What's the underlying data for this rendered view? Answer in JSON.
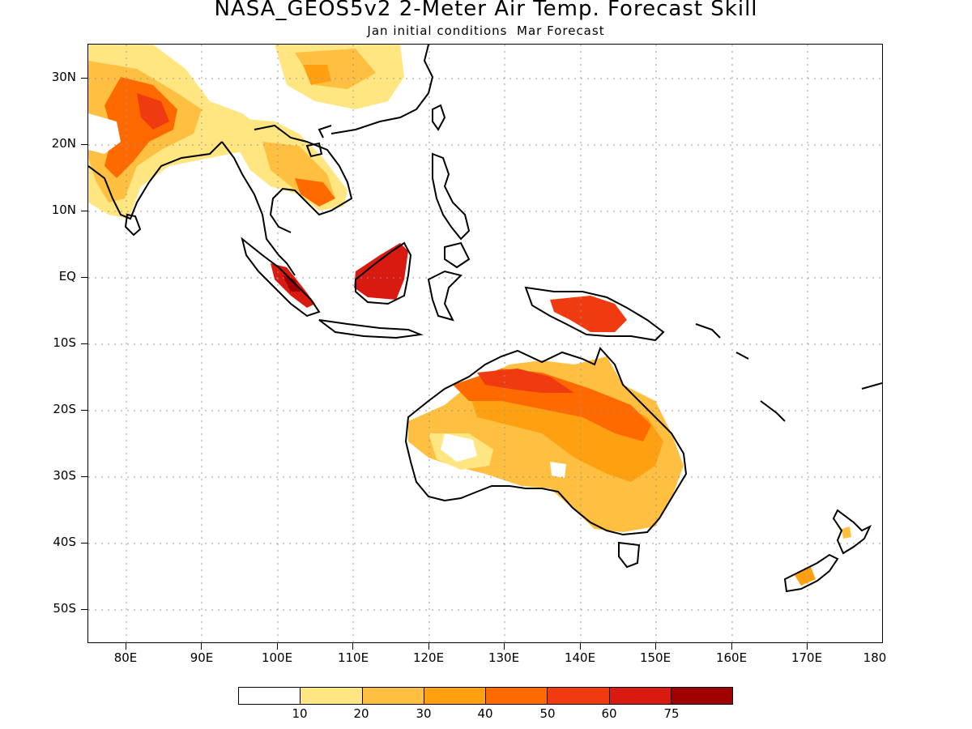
{
  "title": "NASA_GEOS5v2 2-Meter Air Temp. Forecast Skill",
  "subtitle": "Jan initial conditions  Mar Forecast",
  "axes": {
    "lat_labels": [
      "30N",
      "20N",
      "10N",
      "EQ",
      "10S",
      "20S",
      "30S",
      "40S",
      "50S"
    ],
    "lon_labels": [
      "80E",
      "90E",
      "100E",
      "110E",
      "120E",
      "130E",
      "140E",
      "150E",
      "160E",
      "170E",
      "180"
    ],
    "lon_range": [
      75,
      180
    ],
    "lat_range": [
      -55,
      35
    ],
    "grid": true
  },
  "colorbar": {
    "labels": [
      "10",
      "20",
      "30",
      "40",
      "50",
      "60",
      "75"
    ],
    "colors": [
      "#ffffff",
      "#ffe680",
      "#ffbf40",
      "#ffa010",
      "#ff6a00",
      "#f03a10",
      "#d81a10",
      "#a00000"
    ]
  }
}
